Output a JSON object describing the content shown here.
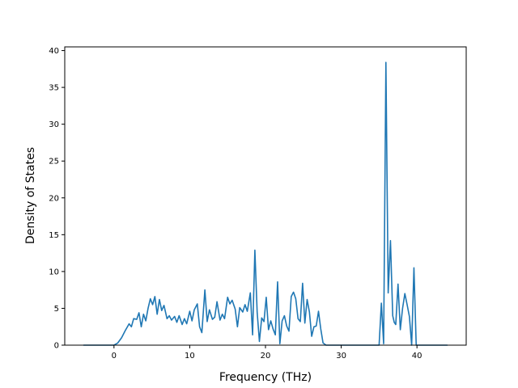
{
  "chart_data": {
    "type": "line",
    "xlabel": "Frequency (THz)",
    "ylabel": "Density of States",
    "xlim": [
      -6.5,
      46.5
    ],
    "ylim": [
      0,
      40.5
    ],
    "xticks": [
      "0",
      "10",
      "20",
      "30",
      "40"
    ],
    "yticks": [
      "0",
      "5",
      "10",
      "15",
      "20",
      "25",
      "30",
      "35",
      "40"
    ],
    "grid": false,
    "legend": "none",
    "line_color": "#1f77b4",
    "series": [
      {
        "x": [
          -4.0,
          0.0,
          0.5,
          1.0,
          1.5,
          2.0,
          2.3,
          2.6,
          3.0,
          3.3,
          3.6,
          3.9,
          4.2,
          4.5,
          4.8,
          5.1,
          5.4,
          5.7,
          6.0,
          6.3,
          6.6,
          7.0,
          7.3,
          7.6,
          8.0,
          8.3,
          8.6,
          9.0,
          9.3,
          9.6,
          10.0,
          10.3,
          10.6,
          11.0,
          11.3,
          11.6,
          12.0,
          12.3,
          12.6,
          13.0,
          13.3,
          13.6,
          14.0,
          14.3,
          14.6,
          15.0,
          15.3,
          15.6,
          16.0,
          16.3,
          16.6,
          17.0,
          17.3,
          17.6,
          18.0,
          18.3,
          18.6,
          18.9,
          19.2,
          19.5,
          19.8,
          20.1,
          20.4,
          20.7,
          21.0,
          21.3,
          21.6,
          21.9,
          22.2,
          22.5,
          22.8,
          23.1,
          23.4,
          23.7,
          24.0,
          24.3,
          24.6,
          24.9,
          25.2,
          25.5,
          25.8,
          26.1,
          26.4,
          26.7,
          27.0,
          27.3,
          27.6,
          28.0,
          29.0,
          35.0,
          35.3,
          35.6,
          35.9,
          36.2,
          36.5,
          36.8,
          37.0,
          37.2,
          37.5,
          37.8,
          38.1,
          38.4,
          38.7,
          39.0,
          39.3,
          39.6,
          39.9,
          40.1,
          40.4,
          44.0
        ],
        "y": [
          0,
          0,
          0.3,
          1.0,
          2.0,
          2.9,
          2.5,
          3.6,
          3.5,
          4.4,
          2.5,
          4.2,
          3.3,
          5.0,
          6.3,
          5.5,
          6.6,
          4.2,
          6.2,
          4.7,
          5.4,
          3.6,
          4.0,
          3.4,
          3.9,
          3.1,
          4.0,
          2.8,
          3.6,
          2.9,
          4.6,
          3.3,
          4.8,
          5.6,
          2.5,
          1.7,
          7.5,
          3.2,
          4.8,
          3.5,
          3.8,
          5.9,
          3.4,
          4.2,
          3.6,
          6.5,
          5.6,
          6.1,
          4.9,
          2.5,
          5.1,
          4.5,
          5.5,
          4.6,
          7.1,
          1.4,
          12.9,
          4.5,
          0.5,
          3.7,
          3.2,
          6.5,
          2.1,
          3.3,
          2.2,
          1.4,
          8.6,
          0.2,
          3.3,
          4.0,
          2.6,
          1.9,
          6.6,
          7.2,
          6.3,
          3.6,
          3.2,
          8.4,
          3.0,
          6.2,
          4.5,
          1.2,
          2.5,
          2.6,
          4.6,
          2.2,
          0.3,
          0,
          0,
          0,
          5.7,
          0.2,
          38.4,
          7.1,
          14.2,
          4.0,
          3.1,
          2.8,
          8.3,
          2.1,
          5.0,
          7.0,
          5.5,
          3.9,
          0,
          10.5,
          0,
          0,
          0,
          0
        ]
      }
    ]
  }
}
